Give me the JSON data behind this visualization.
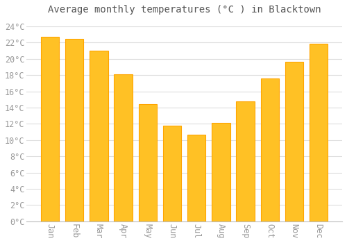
{
  "title": "Average monthly temperatures (°C ) in Blacktown",
  "months": [
    "Jan",
    "Feb",
    "Mar",
    "Apr",
    "May",
    "Jun",
    "Jul",
    "Aug",
    "Sep",
    "Oct",
    "Nov",
    "Dec"
  ],
  "temperatures": [
    22.7,
    22.5,
    21.0,
    18.1,
    14.4,
    11.8,
    10.7,
    12.1,
    14.8,
    17.6,
    19.6,
    21.9
  ],
  "bar_color": "#FFC125",
  "bar_edge_color": "#FFA500",
  "background_color": "#FFFFFF",
  "grid_color": "#DDDDDD",
  "ylim": [
    0,
    25
  ],
  "yticks": [
    0,
    2,
    4,
    6,
    8,
    10,
    12,
    14,
    16,
    18,
    20,
    22,
    24
  ],
  "title_fontsize": 10,
  "tick_fontsize": 8.5,
  "tick_color": "#999999",
  "title_color": "#555555",
  "bar_width": 0.75
}
